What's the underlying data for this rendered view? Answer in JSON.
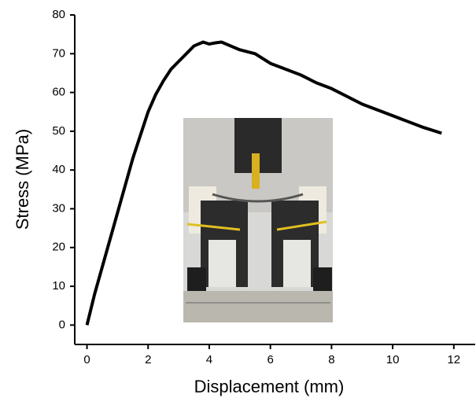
{
  "chart_data": {
    "type": "line",
    "x_label": "Displacement (mm)",
    "y_label": "Stress (MPa)",
    "xlim": [
      -0.4,
      12.7
    ],
    "ylim": [
      -5,
      80
    ],
    "xticks": [
      0,
      2,
      4,
      6,
      8,
      10,
      12
    ],
    "yticks": [
      0,
      10,
      20,
      30,
      40,
      50,
      60,
      70,
      80
    ],
    "grid": false,
    "series": [
      {
        "color": "#000000",
        "x": [
          0,
          0.25,
          0.5,
          0.75,
          1,
          1.25,
          1.5,
          1.75,
          2,
          2.25,
          2.5,
          2.75,
          3,
          3.25,
          3.5,
          3.8,
          4,
          4.2,
          4.4,
          4.7,
          5,
          5.5,
          6,
          6.5,
          7,
          7.5,
          8,
          8.5,
          9,
          9.5,
          10,
          10.5,
          11,
          11.6
        ],
        "values": [
          0,
          8,
          15,
          22,
          29,
          36,
          43,
          49,
          55,
          59.5,
          63,
          66,
          68,
          70,
          72,
          73,
          72.5,
          72.8,
          73,
          72,
          71,
          70,
          67.5,
          66,
          64.5,
          62.5,
          61,
          59,
          57,
          55.5,
          54,
          52.5,
          51,
          49.5
        ]
      }
    ]
  }
}
